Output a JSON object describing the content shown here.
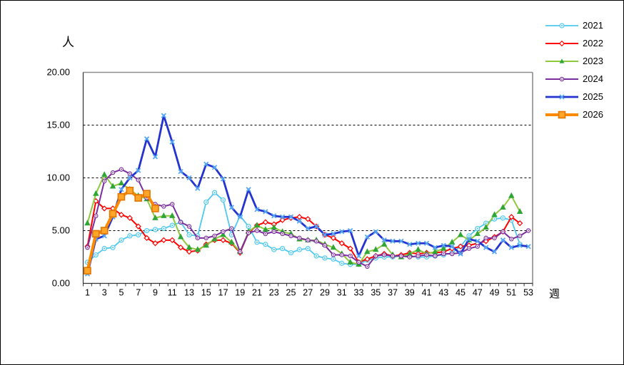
{
  "chart_data": {
    "type": "line",
    "title": "",
    "ylabel": "人",
    "xlabel": "週",
    "ylim": [
      0,
      20
    ],
    "grid": "horizontal-dashed",
    "legend_position": "right",
    "y_ticks": [
      {
        "value": 0,
        "label": "0.00"
      },
      {
        "value": 5,
        "label": "5.00"
      },
      {
        "value": 10,
        "label": "10.00"
      },
      {
        "value": 15,
        "label": "15.00"
      },
      {
        "value": 20,
        "label": "20.00"
      }
    ],
    "x_tick_labels": [
      "1",
      "3",
      "5",
      "7",
      "9",
      "11",
      "13",
      "15",
      "17",
      "19",
      "21",
      "23",
      "25",
      "27",
      "29",
      "31",
      "33",
      "35",
      "37",
      "39",
      "41",
      "43",
      "45",
      "47",
      "49",
      "51",
      "53"
    ],
    "categories": [
      1,
      2,
      3,
      4,
      5,
      6,
      7,
      8,
      9,
      10,
      11,
      12,
      13,
      14,
      15,
      16,
      17,
      18,
      19,
      20,
      21,
      22,
      23,
      24,
      25,
      26,
      27,
      28,
      29,
      30,
      31,
      32,
      33,
      34,
      35,
      36,
      37,
      38,
      39,
      40,
      41,
      42,
      43,
      44,
      45,
      46,
      47,
      48,
      49,
      50,
      51,
      52,
      53
    ],
    "series": [
      {
        "name": "2021",
        "color": "#4FC8F0",
        "marker": "circle",
        "marker_color": "#4FC8F0",
        "line_width": 1.8,
        "values": [
          2.0,
          2.7,
          3.3,
          3.4,
          4.1,
          4.5,
          4.6,
          5.0,
          5.1,
          5.2,
          5.5,
          5.8,
          4.6,
          4.5,
          7.7,
          8.6,
          7.9,
          4.6,
          6.4,
          5.4,
          3.9,
          3.7,
          3.2,
          3.3,
          2.9,
          3.2,
          3.3,
          2.6,
          2.4,
          2.3,
          1.9,
          1.8,
          1.8,
          2.2,
          2.4,
          2.5,
          2.5,
          2.6,
          2.6,
          2.5,
          2.5,
          2.6,
          2.7,
          2.9,
          3.5,
          4.5,
          5.2,
          5.7,
          6.1,
          6.2,
          6.0,
          3.7,
          null
        ]
      },
      {
        "name": "2022",
        "color": "#FF0000",
        "marker": "diamond",
        "marker_color": "#FF0000",
        "line_width": 2,
        "values": [
          3.5,
          7.8,
          7.1,
          7.1,
          6.5,
          6.2,
          5.4,
          4.3,
          3.8,
          4.1,
          4.1,
          3.4,
          3.0,
          3.1,
          3.7,
          4.1,
          4.1,
          3.8,
          2.9,
          4.8,
          5.5,
          5.8,
          5.6,
          6.0,
          6.2,
          6.3,
          6.1,
          5.4,
          4.6,
          4.3,
          3.8,
          3.3,
          2.0,
          2.3,
          2.6,
          2.8,
          2.6,
          2.7,
          2.9,
          2.8,
          2.9,
          2.9,
          3.0,
          3.3,
          3.5,
          3.6,
          3.8,
          4.0,
          4.4,
          4.9,
          6.3,
          5.7,
          null
        ]
      },
      {
        "name": "2023",
        "color": "#8FC93D",
        "marker": "triangle",
        "marker_color": "#2FA637",
        "line_width": 2,
        "values": [
          5.7,
          8.5,
          10.3,
          9.2,
          9.5,
          8.9,
          8.3,
          8.0,
          6.2,
          6.4,
          6.4,
          4.4,
          3.4,
          3.2,
          3.6,
          4.2,
          4.6,
          3.9,
          3.0,
          4.9,
          5.5,
          5.1,
          5.3,
          4.9,
          4.7,
          4.2,
          4.1,
          4.1,
          3.7,
          3.4,
          2.8,
          2.0,
          1.8,
          3.0,
          3.2,
          3.7,
          2.7,
          2.5,
          2.8,
          3.2,
          2.8,
          3.0,
          3.3,
          3.9,
          4.6,
          4.1,
          4.7,
          5.3,
          6.5,
          7.2,
          8.3,
          6.8,
          null
        ]
      },
      {
        "name": "2024",
        "color": "#7B2E9E",
        "marker": "dot",
        "marker_color": "#7B2E9E",
        "line_width": 2,
        "values": [
          3.4,
          6.4,
          9.7,
          10.5,
          10.8,
          10.4,
          9.8,
          8.1,
          7.5,
          7.3,
          7.5,
          5.8,
          5.4,
          4.3,
          4.3,
          4.5,
          4.9,
          5.2,
          3.0,
          4.8,
          5.0,
          4.7,
          4.9,
          4.7,
          4.5,
          4.3,
          4.1,
          4.0,
          3.6,
          2.7,
          2.7,
          2.6,
          2.0,
          1.6,
          2.6,
          2.7,
          2.6,
          2.6,
          2.5,
          2.6,
          2.7,
          2.6,
          2.8,
          2.8,
          2.9,
          3.3,
          3.5,
          4.3,
          4.3,
          4.9,
          4.2,
          4.5,
          5.0
        ]
      },
      {
        "name": "2025",
        "color": "#2433CF",
        "marker": "x",
        "marker_color": "#55A8F5",
        "line_width": 2.8,
        "values": [
          0.9,
          4.2,
          4.5,
          6.3,
          8.9,
          10.0,
          10.7,
          13.7,
          12.0,
          15.9,
          13.4,
          10.6,
          10.0,
          9.0,
          11.3,
          11.0,
          9.9,
          7.2,
          6.3,
          8.9,
          7.0,
          6.8,
          6.4,
          6.3,
          6.3,
          5.9,
          5.2,
          5.4,
          4.6,
          4.7,
          4.9,
          5.0,
          2.6,
          4.4,
          4.9,
          4.1,
          4.0,
          4.0,
          3.7,
          3.8,
          3.8,
          3.4,
          3.6,
          3.5,
          2.8,
          4.2,
          4.0,
          3.4,
          3.0,
          4.1,
          3.4,
          3.6,
          3.5
        ]
      },
      {
        "name": "2026",
        "color": "#FF8A00",
        "marker": "square",
        "marker_color": "#FFA629",
        "marker_edge": "#E27500",
        "line_width": 4,
        "values": [
          1.2,
          4.7,
          5.0,
          6.6,
          8.2,
          8.8,
          8.1,
          8.5,
          7.1,
          null,
          null,
          null,
          null,
          null,
          null,
          null,
          null,
          null,
          null,
          null,
          null,
          null,
          null,
          null,
          null,
          null,
          null,
          null,
          null,
          null,
          null,
          null,
          null,
          null,
          null,
          null,
          null,
          null,
          null,
          null,
          null,
          null,
          null,
          null,
          null,
          null,
          null,
          null,
          null,
          null,
          null,
          null,
          null
        ]
      }
    ]
  }
}
